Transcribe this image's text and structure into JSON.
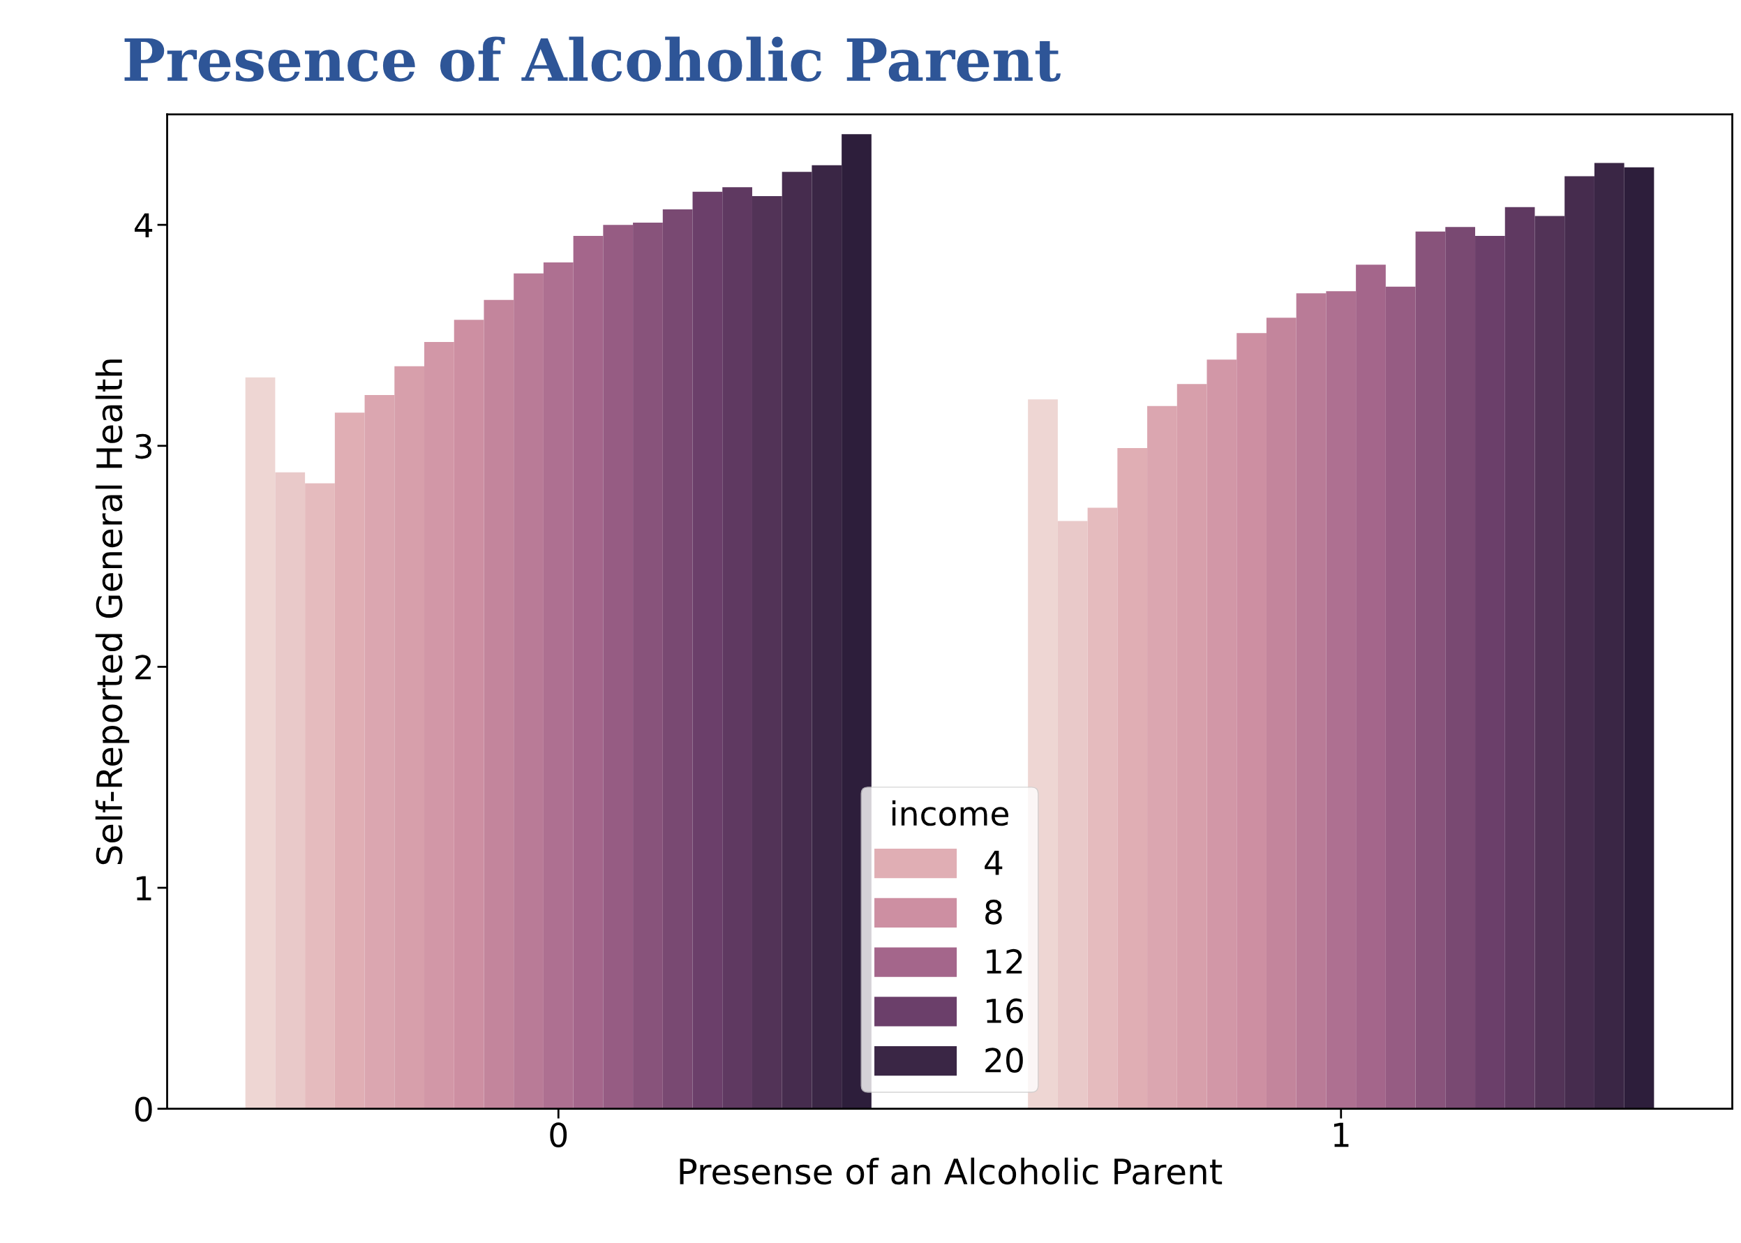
{
  "chart_data": {
    "type": "bar",
    "title": "Presence of Alcoholic Parent",
    "xlabel": "Presense of an Alcoholic Parent",
    "ylabel": "Self-Reported General Health",
    "legend_title": "income",
    "legend": "bottom",
    "categories": [
      "0",
      "1"
    ],
    "ylim": [
      0,
      4.5
    ],
    "yticks": [
      0,
      1,
      2,
      3,
      4
    ],
    "series": [
      {
        "color": "#eed6d3",
        "values": [
          3.31,
          3.21
        ]
      },
      {
        "color": "#e9c9c9",
        "values": [
          2.88,
          2.66
        ]
      },
      {
        "color": "#e5bbbe",
        "values": [
          2.83,
          2.72
        ]
      },
      {
        "name": "4",
        "color": "#e0aeb4",
        "values": [
          3.15,
          2.99
        ]
      },
      {
        "color": "#dba6b0",
        "values": [
          3.23,
          3.18
        ]
      },
      {
        "color": "#d79fab",
        "values": [
          3.36,
          3.28
        ]
      },
      {
        "color": "#d297a7",
        "values": [
          3.47,
          3.39
        ]
      },
      {
        "name": "8",
        "color": "#cd8fa2",
        "values": [
          3.57,
          3.51
        ]
      },
      {
        "color": "#c3859c",
        "values": [
          3.66,
          3.58
        ]
      },
      {
        "color": "#b97b97",
        "values": [
          3.78,
          3.69
        ]
      },
      {
        "color": "#ae7091",
        "values": [
          3.83,
          3.7
        ]
      },
      {
        "name": "12",
        "color": "#a4668b",
        "values": [
          3.95,
          3.82
        ]
      },
      {
        "color": "#965c83",
        "values": [
          4.0,
          3.72
        ]
      },
      {
        "color": "#88537b",
        "values": [
          4.01,
          3.97
        ]
      },
      {
        "color": "#794972",
        "values": [
          4.07,
          3.99
        ]
      },
      {
        "name": "16",
        "color": "#6b3f6a",
        "values": [
          4.15,
          3.95
        ]
      },
      {
        "color": "#5f3961",
        "values": [
          4.17,
          4.08
        ]
      },
      {
        "color": "#523357",
        "values": [
          4.13,
          4.04
        ]
      },
      {
        "color": "#462c4e",
        "values": [
          4.24,
          4.22
        ]
      },
      {
        "name": "20",
        "color": "#3a2645",
        "values": [
          4.27,
          4.28
        ]
      },
      {
        "color": "#2d1e3b",
        "values": [
          4.41,
          4.26
        ]
      }
    ]
  }
}
